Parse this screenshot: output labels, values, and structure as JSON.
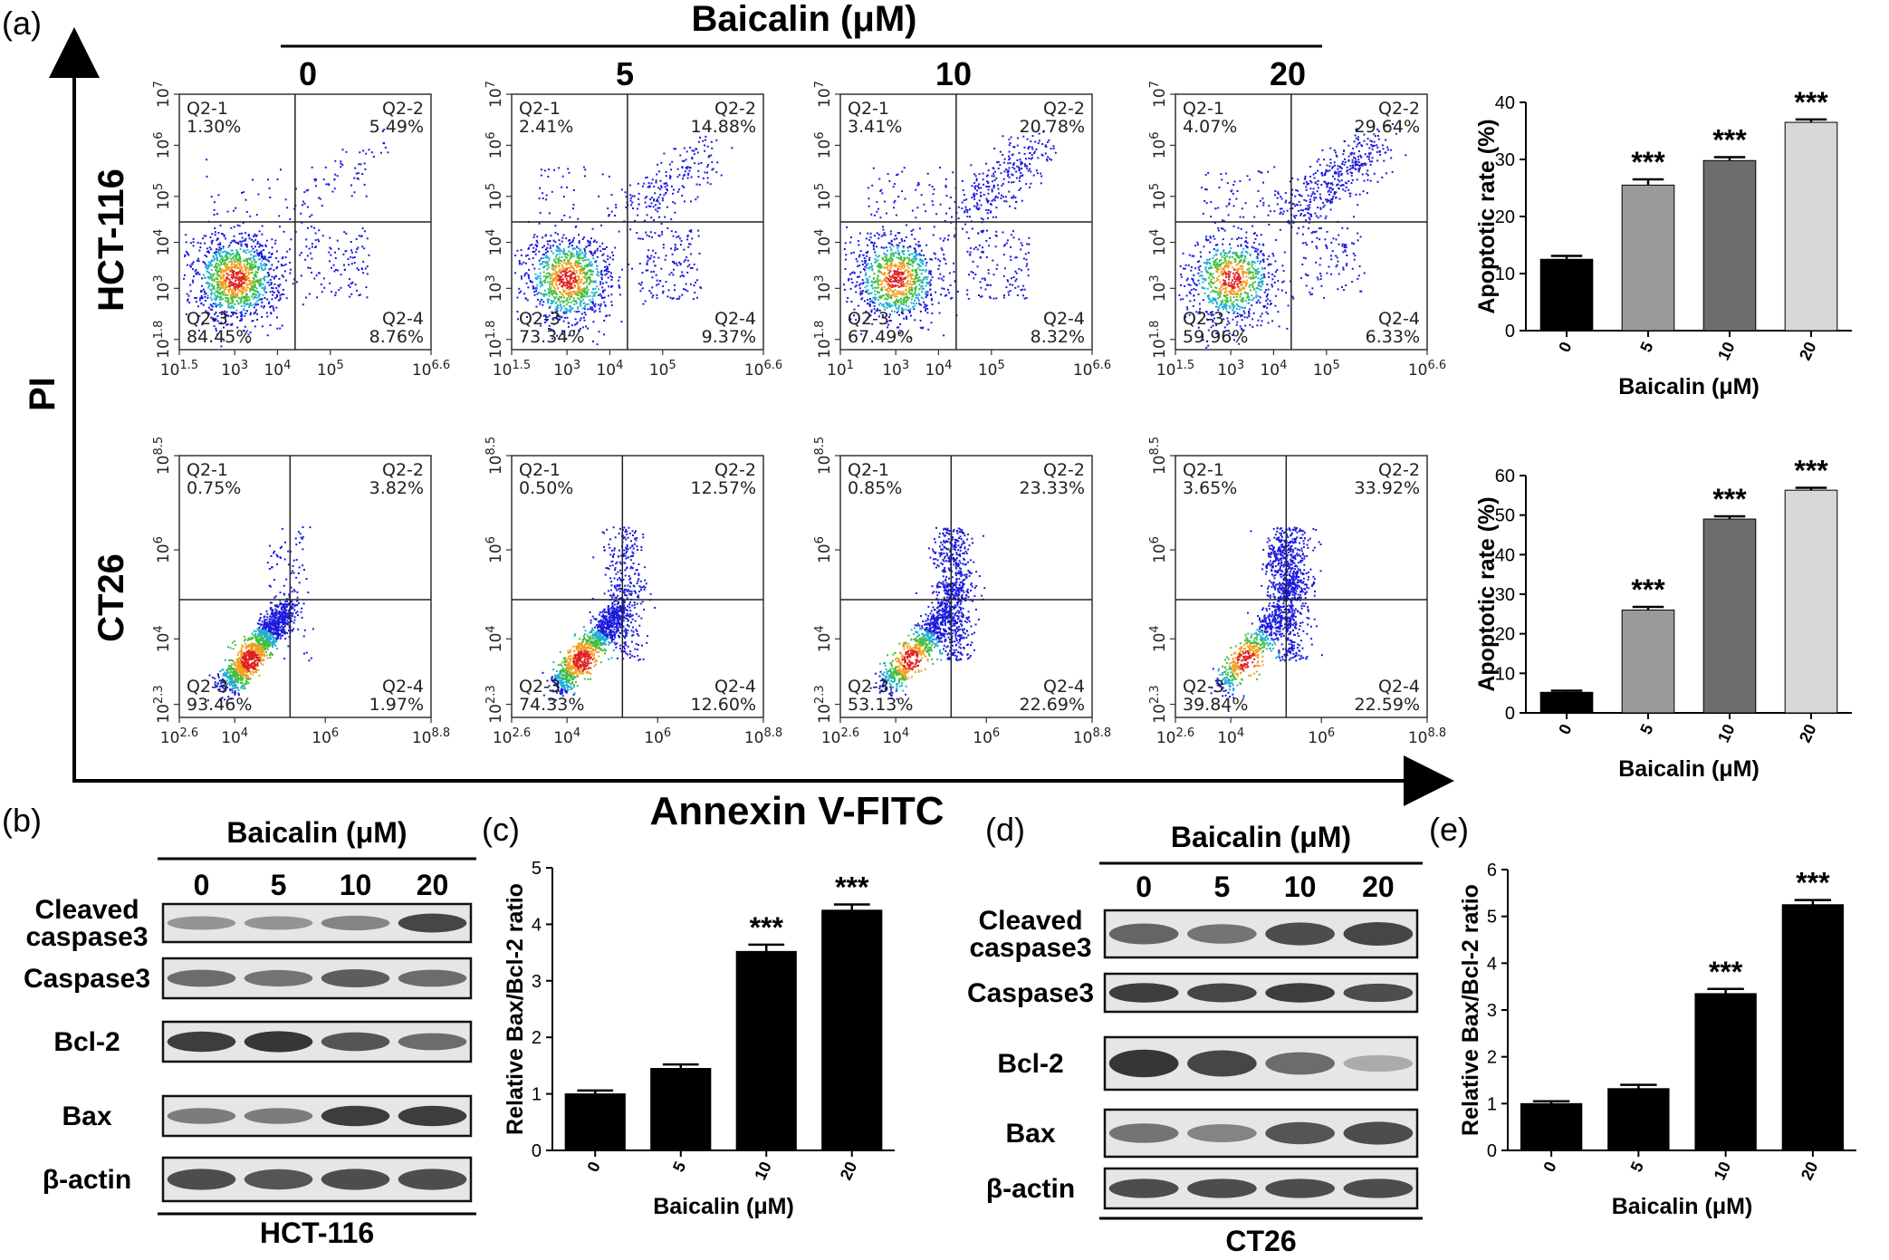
{
  "panel_labels": {
    "a": "(a)",
    "b": "(b)",
    "c": "(c)",
    "d": "(d)",
    "e": "(e)"
  },
  "flow": {
    "title": "Baicalin (μM)",
    "doses": [
      "0",
      "5",
      "10",
      "20"
    ],
    "x_axis_label": "Annexin V-FITC",
    "y_axis_label": "PI",
    "rows": [
      {
        "cell_line": "HCT-116",
        "x_ticks": [
          "10^1.5",
          "10^3",
          "10^4",
          "10^5",
          "10^6.6"
        ],
        "y_ticks": [
          "10^1.8",
          "10^3",
          "10^4",
          "10^5",
          "10^6",
          "10^7"
        ],
        "x_ticks_dose10": [
          "10^1",
          "10^3",
          "10^4",
          "10^5",
          "10^6.6"
        ],
        "plots": [
          {
            "q1": "Q2-1",
            "q1v": "1.30%",
            "q2": "Q2-2",
            "q2v": "5.49%",
            "q3": "Q2-3",
            "q3v": "84.45%",
            "q4": "Q2-4",
            "q4v": "8.76%"
          },
          {
            "q1": "Q2-1",
            "q1v": "2.41%",
            "q2": "Q2-2",
            "q2v": "14.88%",
            "q3": "Q2-3",
            "q3v": "73.34%",
            "q4": "Q2-4",
            "q4v": "9.37%"
          },
          {
            "q1": "Q2-1",
            "q1v": "3.41%",
            "q2": "Q2-2",
            "q2v": "20.78%",
            "q3": "Q2-3",
            "q3v": "67.49%",
            "q4": "Q2-4",
            "q4v": "8.32%"
          },
          {
            "q1": "Q2-1",
            "q1v": "4.07%",
            "q2": "Q2-2",
            "q2v": "29.64%",
            "q3": "Q2-3",
            "q3v": "59.96%",
            "q4": "Q2-4",
            "q4v": "6.33%"
          }
        ]
      },
      {
        "cell_line": "CT26",
        "x_ticks": [
          "10^2.6",
          "10^4",
          "10^6",
          "10^8.8"
        ],
        "y_ticks": [
          "10^2.3",
          "10^4",
          "10^6",
          "10^8.5"
        ],
        "plots": [
          {
            "q1": "Q2-1",
            "q1v": "0.75%",
            "q2": "Q2-2",
            "q2v": "3.82%",
            "q3": "Q2-3",
            "q3v": "93.46%",
            "q4": "Q2-4",
            "q4v": "1.97%"
          },
          {
            "q1": "Q2-1",
            "q1v": "0.50%",
            "q2": "Q2-2",
            "q2v": "12.57%",
            "q3": "Q2-3",
            "q3v": "74.33%",
            "q4": "Q2-4",
            "q4v": "12.60%"
          },
          {
            "q1": "Q2-1",
            "q1v": "0.85%",
            "q2": "Q2-2",
            "q2v": "23.33%",
            "q3": "Q2-3",
            "q3v": "53.13%",
            "q4": "Q2-4",
            "q4v": "22.69%"
          },
          {
            "q1": "Q2-1",
            "q1v": "3.65%",
            "q2": "Q2-2",
            "q2v": "33.92%",
            "q3": "Q2-3",
            "q3v": "39.84%",
            "q4": "Q2-4",
            "q4v": "22.59%"
          }
        ]
      }
    ]
  },
  "blots": {
    "b": {
      "title": "Baicalin (μM)",
      "doses": [
        "0",
        "5",
        "10",
        "20"
      ],
      "cell_line": "HCT-116",
      "rows": [
        {
          "label": "Cleaved\ncaspase3",
          "intensity": [
            0.35,
            0.35,
            0.45,
            0.85
          ]
        },
        {
          "label": "Caspase3",
          "intensity": [
            0.6,
            0.55,
            0.7,
            0.6
          ]
        },
        {
          "label": "Bcl-2",
          "intensity": [
            0.9,
            0.95,
            0.75,
            0.6
          ]
        },
        {
          "label": "Bax",
          "intensity": [
            0.5,
            0.5,
            0.9,
            0.9
          ]
        },
        {
          "label": "β-actin",
          "intensity": [
            0.8,
            0.75,
            0.8,
            0.8
          ]
        }
      ]
    },
    "d": {
      "title": "Baicalin (μM)",
      "doses": [
        "0",
        "5",
        "10",
        "20"
      ],
      "cell_line": "CT26",
      "rows": [
        {
          "label": "Cleaved\ncaspase3",
          "intensity": [
            0.65,
            0.55,
            0.8,
            0.85
          ]
        },
        {
          "label": "Caspase3",
          "intensity": [
            0.9,
            0.85,
            0.9,
            0.8
          ]
        },
        {
          "label": "Bcl-2",
          "intensity": [
            0.95,
            0.85,
            0.6,
            0.2
          ]
        },
        {
          "label": "Bax",
          "intensity": [
            0.55,
            0.45,
            0.75,
            0.8
          ]
        },
        {
          "label": "β-actin",
          "intensity": [
            0.8,
            0.8,
            0.8,
            0.8
          ]
        }
      ]
    }
  },
  "chart_data": [
    {
      "id": "a-top",
      "type": "bar",
      "categories": [
        "0",
        "5",
        "10",
        "20"
      ],
      "values": [
        12.5,
        25.5,
        29.8,
        36.5
      ],
      "errors": [
        0.6,
        1.0,
        0.6,
        0.5
      ],
      "colors": [
        "#000000",
        "#9a9a9a",
        "#6e6e6e",
        "#d8d8d8"
      ],
      "significance": [
        "",
        "***",
        "***",
        "***"
      ],
      "xlabel": "Baicalin (μM)",
      "ylabel": "Apoptotic rate (%)",
      "ylim": [
        0,
        40
      ],
      "yticks": [
        0,
        10,
        20,
        30,
        40
      ]
    },
    {
      "id": "a-bottom",
      "type": "bar",
      "categories": [
        "0",
        "5",
        "10",
        "20"
      ],
      "values": [
        5.2,
        26.0,
        49.0,
        56.3
      ],
      "errors": [
        0.4,
        0.8,
        0.7,
        0.6
      ],
      "colors": [
        "#000000",
        "#9a9a9a",
        "#6e6e6e",
        "#d8d8d8"
      ],
      "significance": [
        "",
        "***",
        "***",
        "***"
      ],
      "xlabel": "Baicalin (μM)",
      "ylabel": "Apoptotic rate (%)",
      "ylim": [
        0,
        60
      ],
      "yticks": [
        0,
        10,
        20,
        30,
        40,
        50,
        60
      ]
    },
    {
      "id": "c",
      "type": "bar",
      "categories": [
        "0",
        "5",
        "10",
        "20"
      ],
      "values": [
        1.0,
        1.45,
        3.52,
        4.25
      ],
      "errors": [
        0.06,
        0.07,
        0.12,
        0.1
      ],
      "colors": [
        "#000000",
        "#000000",
        "#000000",
        "#000000"
      ],
      "significance": [
        "",
        "",
        "***",
        "***"
      ],
      "xlabel": "Baicalin (μM)",
      "ylabel": "Relative Bax/Bcl-2 ratio",
      "ylim": [
        0,
        5
      ],
      "yticks": [
        0,
        1,
        2,
        3,
        4,
        5
      ]
    },
    {
      "id": "e",
      "type": "bar",
      "categories": [
        "0",
        "5",
        "10",
        "20"
      ],
      "values": [
        1.0,
        1.32,
        3.35,
        5.25
      ],
      "errors": [
        0.05,
        0.08,
        0.1,
        0.1
      ],
      "colors": [
        "#000000",
        "#000000",
        "#000000",
        "#000000"
      ],
      "significance": [
        "",
        "",
        "***",
        "***"
      ],
      "xlabel": "Baicalin (μM)",
      "ylabel": "Relative Bax/Bcl-2 ratio",
      "ylim": [
        0,
        6
      ],
      "yticks": [
        0,
        1,
        2,
        3,
        4,
        5,
        6
      ]
    }
  ]
}
